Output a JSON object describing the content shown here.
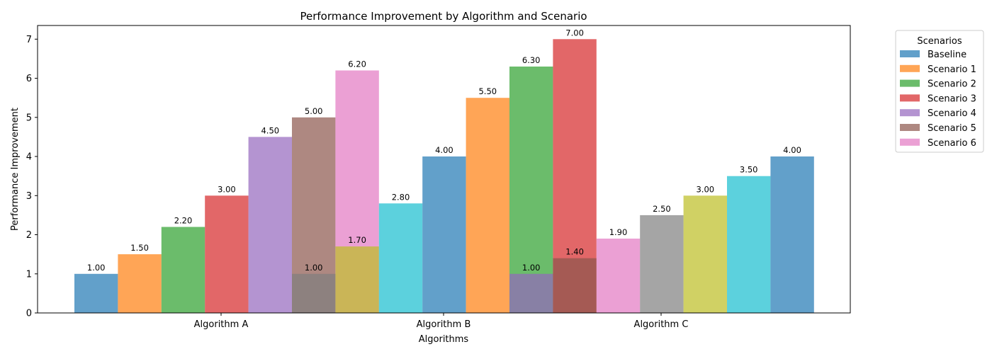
{
  "chart_data": {
    "type": "bar",
    "title": "Performance Improvement by Algorithm and Scenario",
    "xlabel": "Algorithms",
    "ylabel": "Performance Improvement",
    "categories": [
      "Algorithm A",
      "Algorithm B",
      "Algorithm C"
    ],
    "ylim": [
      0,
      7.35
    ],
    "yticks": [
      "0",
      "1",
      "2",
      "3",
      "4",
      "5",
      "6",
      "7"
    ],
    "grid": false,
    "legend": {
      "title": "Scenarios",
      "placement": "outside-right-top",
      "entries": [
        {
          "name": "Baseline",
          "color": "#1f77b4"
        },
        {
          "name": "Scenario 1",
          "color": "#ff7f0e"
        },
        {
          "name": "Scenario 2",
          "color": "#2ca02c"
        },
        {
          "name": "Scenario 3",
          "color": "#d62728"
        },
        {
          "name": "Scenario 4",
          "color": "#9467bd"
        },
        {
          "name": "Scenario 5",
          "color": "#8c564b"
        },
        {
          "name": "Scenario 6",
          "color": "#e377c2"
        }
      ]
    },
    "bar_opacity": 0.7,
    "bars": [
      {
        "slot": 0,
        "value": 1.0,
        "label": "1.00",
        "color": "#1f77b4"
      },
      {
        "slot": 1,
        "value": 1.5,
        "label": "1.50",
        "color": "#ff7f0e"
      },
      {
        "slot": 2,
        "value": 2.2,
        "label": "2.20",
        "color": "#2ca02c"
      },
      {
        "slot": 3,
        "value": 3.0,
        "label": "3.00",
        "color": "#d62728"
      },
      {
        "slot": 4,
        "value": 4.5,
        "label": "4.50",
        "color": "#9467bd"
      },
      {
        "slot": 5,
        "value": 5.0,
        "label": "5.00",
        "color": "#8c564b"
      },
      {
        "slot": 6,
        "value": 6.2,
        "label": "6.20",
        "color": "#e377c2"
      },
      {
        "slot": 5,
        "value": 1.0,
        "label": "1.00",
        "color": "#7f7f7f"
      },
      {
        "slot": 6,
        "value": 1.7,
        "label": "1.70",
        "color": "#bcbd22"
      },
      {
        "slot": 7,
        "value": 2.8,
        "label": "2.80",
        "color": "#17becf"
      },
      {
        "slot": 8,
        "value": 4.0,
        "label": "4.00",
        "color": "#1f77b4"
      },
      {
        "slot": 9,
        "value": 5.5,
        "label": "5.50",
        "color": "#ff7f0e"
      },
      {
        "slot": 10,
        "value": 6.3,
        "label": "6.30",
        "color": "#2ca02c"
      },
      {
        "slot": 11,
        "value": 7.0,
        "label": "7.00",
        "color": "#d62728"
      },
      {
        "slot": 10,
        "value": 1.0,
        "label": "1.00",
        "color": "#9467bd"
      },
      {
        "slot": 11,
        "value": 1.4,
        "label": "1.40",
        "color": "#8c564b"
      },
      {
        "slot": 12,
        "value": 1.9,
        "label": "1.90",
        "color": "#e377c2"
      },
      {
        "slot": 13,
        "value": 2.5,
        "label": "2.50",
        "color": "#7f7f7f"
      },
      {
        "slot": 14,
        "value": 3.0,
        "label": "3.00",
        "color": "#bcbd22"
      },
      {
        "slot": 15,
        "value": 3.5,
        "label": "3.50",
        "color": "#17becf"
      },
      {
        "slot": 16,
        "value": 4.0,
        "label": "4.00",
        "color": "#1f77b4"
      }
    ]
  }
}
